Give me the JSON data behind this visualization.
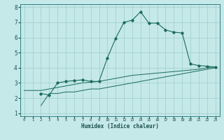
{
  "xlabel": "Humidex (Indice chaleur)",
  "bg_color": "#c5e8e8",
  "grid_color": "#9ecece",
  "line_color": "#1a6b5a",
  "xlim": [
    -0.5,
    23.5
  ],
  "ylim": [
    0.8,
    8.2
  ],
  "xticks": [
    0,
    1,
    2,
    3,
    4,
    5,
    6,
    7,
    8,
    9,
    10,
    11,
    12,
    13,
    14,
    15,
    16,
    17,
    18,
    19,
    20,
    21,
    22,
    23
  ],
  "yticks": [
    1,
    2,
    3,
    4,
    5,
    6,
    7,
    8
  ],
  "line1_x": [
    0,
    1,
    2,
    3,
    4,
    5,
    6,
    7,
    8,
    9,
    10,
    11,
    12,
    13,
    14,
    15,
    16,
    17,
    18,
    19,
    20,
    21,
    22,
    23
  ],
  "line1_y": [
    2.5,
    2.5,
    2.5,
    2.6,
    2.7,
    2.8,
    2.9,
    3.0,
    3.05,
    3.1,
    3.2,
    3.3,
    3.4,
    3.5,
    3.55,
    3.6,
    3.65,
    3.7,
    3.75,
    3.8,
    3.85,
    3.9,
    4.0,
    4.05
  ],
  "line2_x": [
    2,
    3,
    4,
    5,
    6,
    7,
    8,
    9,
    10,
    11,
    12,
    13,
    14,
    15,
    16,
    17,
    18,
    19,
    20,
    21,
    22,
    23
  ],
  "line2_y": [
    2.3,
    2.2,
    3.0,
    3.1,
    3.15,
    3.2,
    3.1,
    3.1,
    4.65,
    5.95,
    7.0,
    7.15,
    7.7,
    6.95,
    6.95,
    6.5,
    6.35,
    6.3,
    4.25,
    4.15,
    4.1,
    4.05
  ],
  "line3_x": [
    2,
    3,
    4,
    5,
    6,
    7,
    8,
    9,
    10,
    11,
    12,
    13,
    14,
    15,
    16,
    17,
    18,
    19,
    20,
    21,
    22,
    23
  ],
  "line3_y": [
    1.5,
    2.3,
    2.3,
    2.4,
    2.4,
    2.5,
    2.6,
    2.6,
    2.7,
    2.8,
    2.9,
    3.0,
    3.1,
    3.2,
    3.3,
    3.4,
    3.5,
    3.6,
    3.7,
    3.8,
    3.9,
    4.0
  ],
  "xlabel_fontsize": 5.5,
  "tick_fontsize_x": 4.0,
  "tick_fontsize_y": 5.5
}
